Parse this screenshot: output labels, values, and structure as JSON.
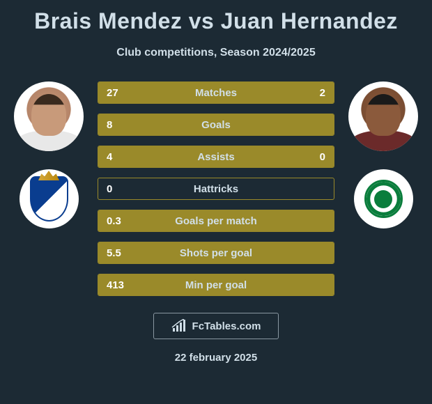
{
  "title": "Brais Mendez vs Juan Hernandez",
  "subtitle": "Club competitions, Season 2024/2025",
  "player_left": {
    "name": "Brais Mendez",
    "skin_color": "#c89a7a",
    "hair_color": "#3a2a1e",
    "shirt_color": "#e8e8e8"
  },
  "player_right": {
    "name": "Juan Hernandez",
    "skin_color": "#8b5a3c",
    "hair_color": "#1a1a1a",
    "shirt_color": "#6b2a2a"
  },
  "club_left": {
    "name": "Real Sociedad",
    "primary_color": "#0a3d8f",
    "secondary_color": "#ffffff"
  },
  "club_right": {
    "name": "Real Betis",
    "primary_color": "#0a7d3c",
    "secondary_color": "#ffffff"
  },
  "stats": [
    {
      "label": "Matches",
      "left_val": "27",
      "right_val": "2",
      "left_pct": 93,
      "right_pct": 7
    },
    {
      "label": "Goals",
      "left_val": "8",
      "right_val": "",
      "left_pct": 100,
      "right_pct": 0
    },
    {
      "label": "Assists",
      "left_val": "4",
      "right_val": "0",
      "left_pct": 100,
      "right_pct": 0
    },
    {
      "label": "Hattricks",
      "left_val": "0",
      "right_val": "",
      "left_pct": 0,
      "right_pct": 0
    },
    {
      "label": "Goals per match",
      "left_val": "0.3",
      "right_val": "",
      "left_pct": 100,
      "right_pct": 0
    },
    {
      "label": "Shots per goal",
      "left_val": "5.5",
      "right_val": "",
      "left_pct": 100,
      "right_pct": 0
    },
    {
      "label": "Min per goal",
      "left_val": "413",
      "right_val": "",
      "left_pct": 100,
      "right_pct": 0
    }
  ],
  "colors": {
    "background": "#1c2a34",
    "bar_fill": "#9a8a2a",
    "bar_border": "#9a8a2a",
    "text_primary": "#d1dfe8",
    "text_white": "#ffffff"
  },
  "footer": {
    "brand": "FcTables.com",
    "date": "22 february 2025"
  }
}
